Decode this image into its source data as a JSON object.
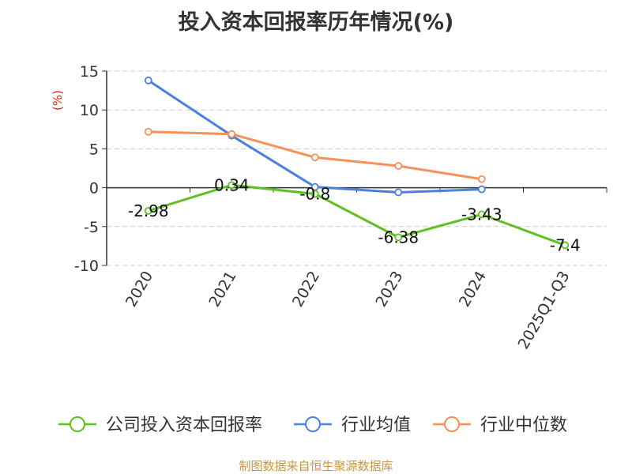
{
  "chart_data": {
    "type": "line",
    "title": "投入资本回报率历年情况(%)",
    "ylabel": "(%)",
    "xlabel": "",
    "categories": [
      "2020",
      "2021",
      "2022",
      "2023",
      "2024",
      "2025Q1-Q3"
    ],
    "ylim": [
      -10,
      15
    ],
    "yticks": [
      15,
      10,
      5,
      0,
      -5,
      -10
    ],
    "grid": true,
    "legend_position": "bottom",
    "series": [
      {
        "name": "公司投入资本回报率",
        "color": "#5ec022",
        "values": [
          -2.98,
          0.34,
          -0.8,
          -6.38,
          -3.43,
          -7.4
        ],
        "labels": [
          "-2.98",
          "0.34",
          "-0.8",
          "-6.38",
          "-3.43",
          "-7.4"
        ]
      },
      {
        "name": "行业均值",
        "color": "#4d7fdc",
        "values": [
          13.8,
          6.7,
          0.1,
          -0.6,
          -0.2,
          null
        ]
      },
      {
        "name": "行业中位数",
        "color": "#f7905a",
        "values": [
          7.2,
          6.9,
          3.9,
          2.8,
          1.1,
          null
        ]
      }
    ]
  },
  "source": "制图数据来自恒生聚源数据库"
}
